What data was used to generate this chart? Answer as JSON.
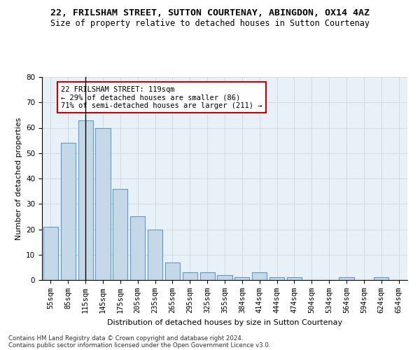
{
  "title": "22, FRILSHAM STREET, SUTTON COURTENAY, ABINGDON, OX14 4AZ",
  "subtitle": "Size of property relative to detached houses in Sutton Courtenay",
  "xlabel": "Distribution of detached houses by size in Sutton Courtenay",
  "ylabel": "Number of detached properties",
  "categories": [
    "55sqm",
    "85sqm",
    "115sqm",
    "145sqm",
    "175sqm",
    "205sqm",
    "235sqm",
    "265sqm",
    "295sqm",
    "325sqm",
    "355sqm",
    "384sqm",
    "414sqm",
    "444sqm",
    "474sqm",
    "504sqm",
    "534sqm",
    "564sqm",
    "594sqm",
    "624sqm",
    "654sqm"
  ],
  "values": [
    21,
    54,
    63,
    60,
    36,
    25,
    20,
    7,
    3,
    3,
    2,
    1,
    3,
    1,
    1,
    0,
    0,
    1,
    0,
    1,
    0
  ],
  "bar_color": "#c5d8e8",
  "bar_edge_color": "#5b9bd5",
  "vline_x": 2,
  "vline_color": "#000000",
  "annotation_text": "22 FRILSHAM STREET: 119sqm\n← 29% of detached houses are smaller (86)\n71% of semi-detached houses are larger (211) →",
  "annotation_box_color": "#ffffff",
  "annotation_box_edge_color": "#cc0000",
  "ylim": [
    0,
    80
  ],
  "yticks": [
    0,
    10,
    20,
    30,
    40,
    50,
    60,
    70,
    80
  ],
  "grid_color": "#d0d8e0",
  "background_color": "#e8f0f8",
  "footer_line1": "Contains HM Land Registry data © Crown copyright and database right 2024.",
  "footer_line2": "Contains public sector information licensed under the Open Government Licence v3.0.",
  "title_fontsize": 9.5,
  "subtitle_fontsize": 8.5,
  "axis_label_fontsize": 8,
  "tick_fontsize": 7.5,
  "annotation_fontsize": 7.5
}
